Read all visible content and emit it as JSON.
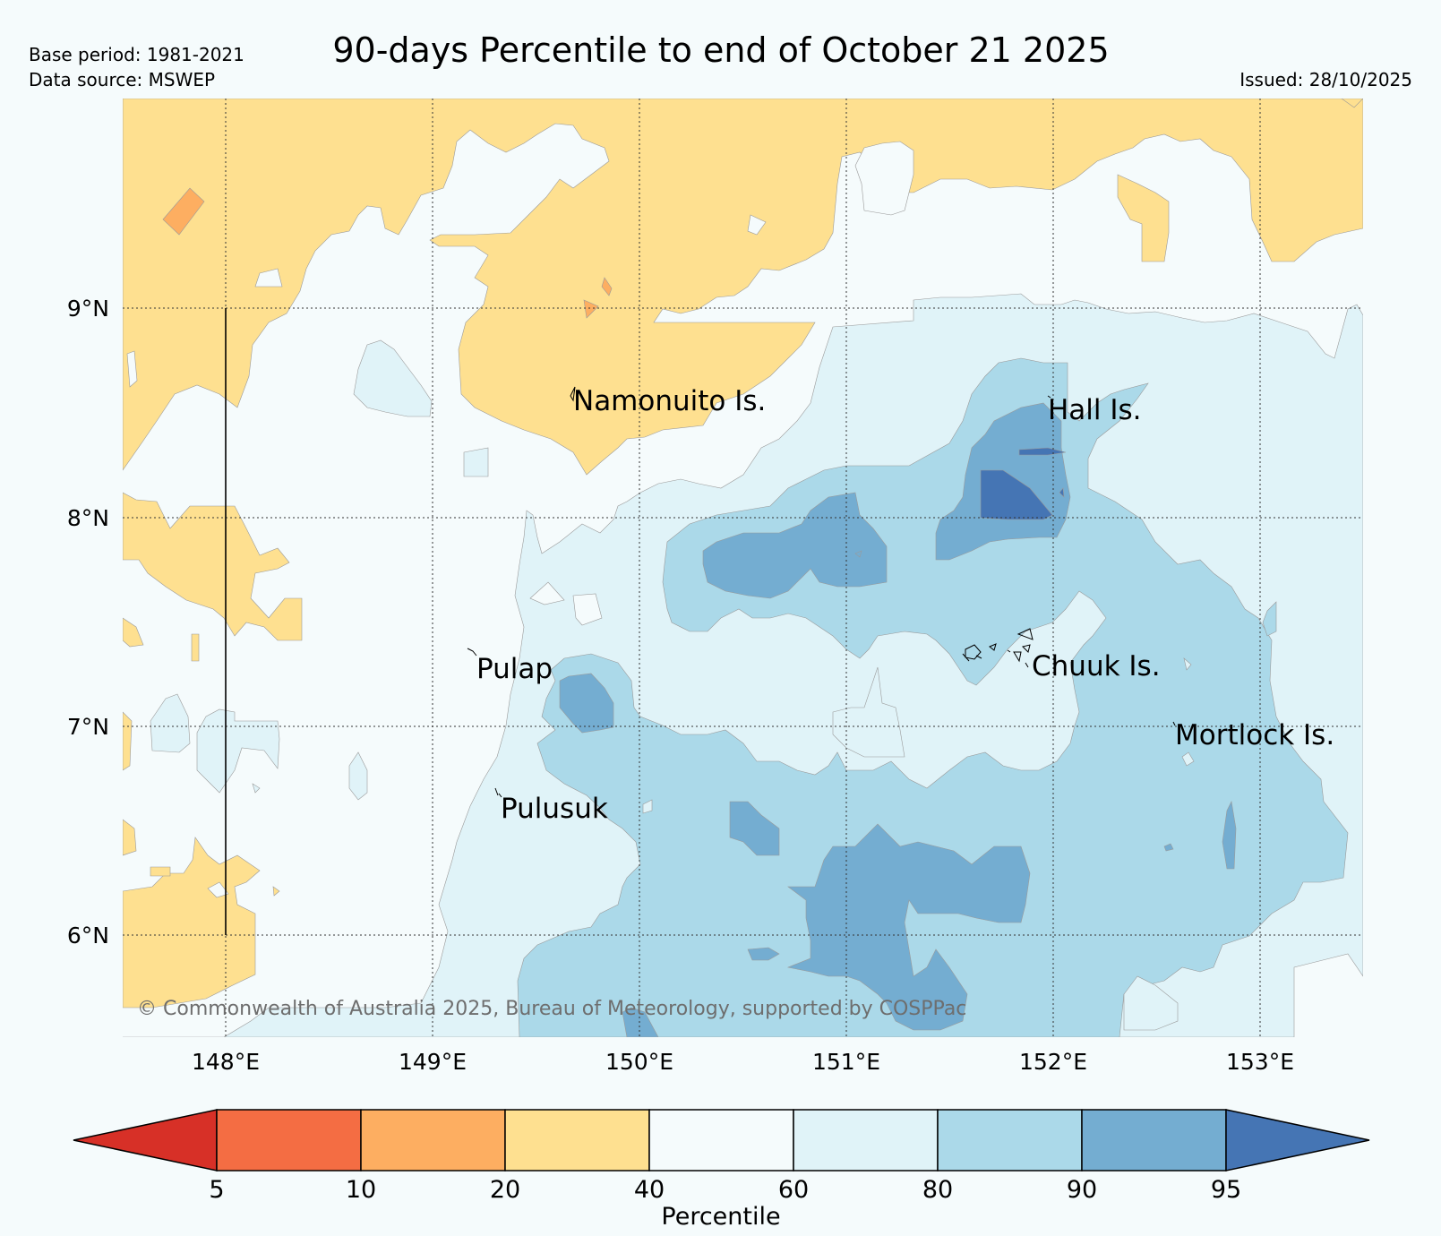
{
  "header": {
    "title": "90-days Percentile to end of October 21 2025",
    "base_period": "Base period: 1981-2021",
    "data_source": "Data source: MSWEP",
    "issued": "Issued: 28/10/2025"
  },
  "map": {
    "lat_labels": [
      "9°N",
      "8°N",
      "7°N",
      "6°N"
    ],
    "lon_labels": [
      "148°E",
      "149°E",
      "150°E",
      "151°E",
      "152°E",
      "153°E"
    ],
    "places": [
      {
        "name": "Namonuito Is."
      },
      {
        "name": "Hall Is."
      },
      {
        "name": "Pulap"
      },
      {
        "name": "Chuuk Is."
      },
      {
        "name": "Mortlock Is."
      },
      {
        "name": "Pulusuk"
      }
    ],
    "copyright": "© Commonwealth of Australia 2025, Bureau of Meteorology, supported by COSPPac"
  },
  "colorbar": {
    "label": "Percentile",
    "ticks": [
      "5",
      "10",
      "20",
      "40",
      "60",
      "80",
      "90",
      "95"
    ],
    "colors": [
      "#d73027",
      "#f46d43",
      "#fdae61",
      "#fee090",
      "#f5fbfc",
      "#e0f3f8",
      "#abd9e9",
      "#74add1",
      "#4575b4"
    ]
  }
}
